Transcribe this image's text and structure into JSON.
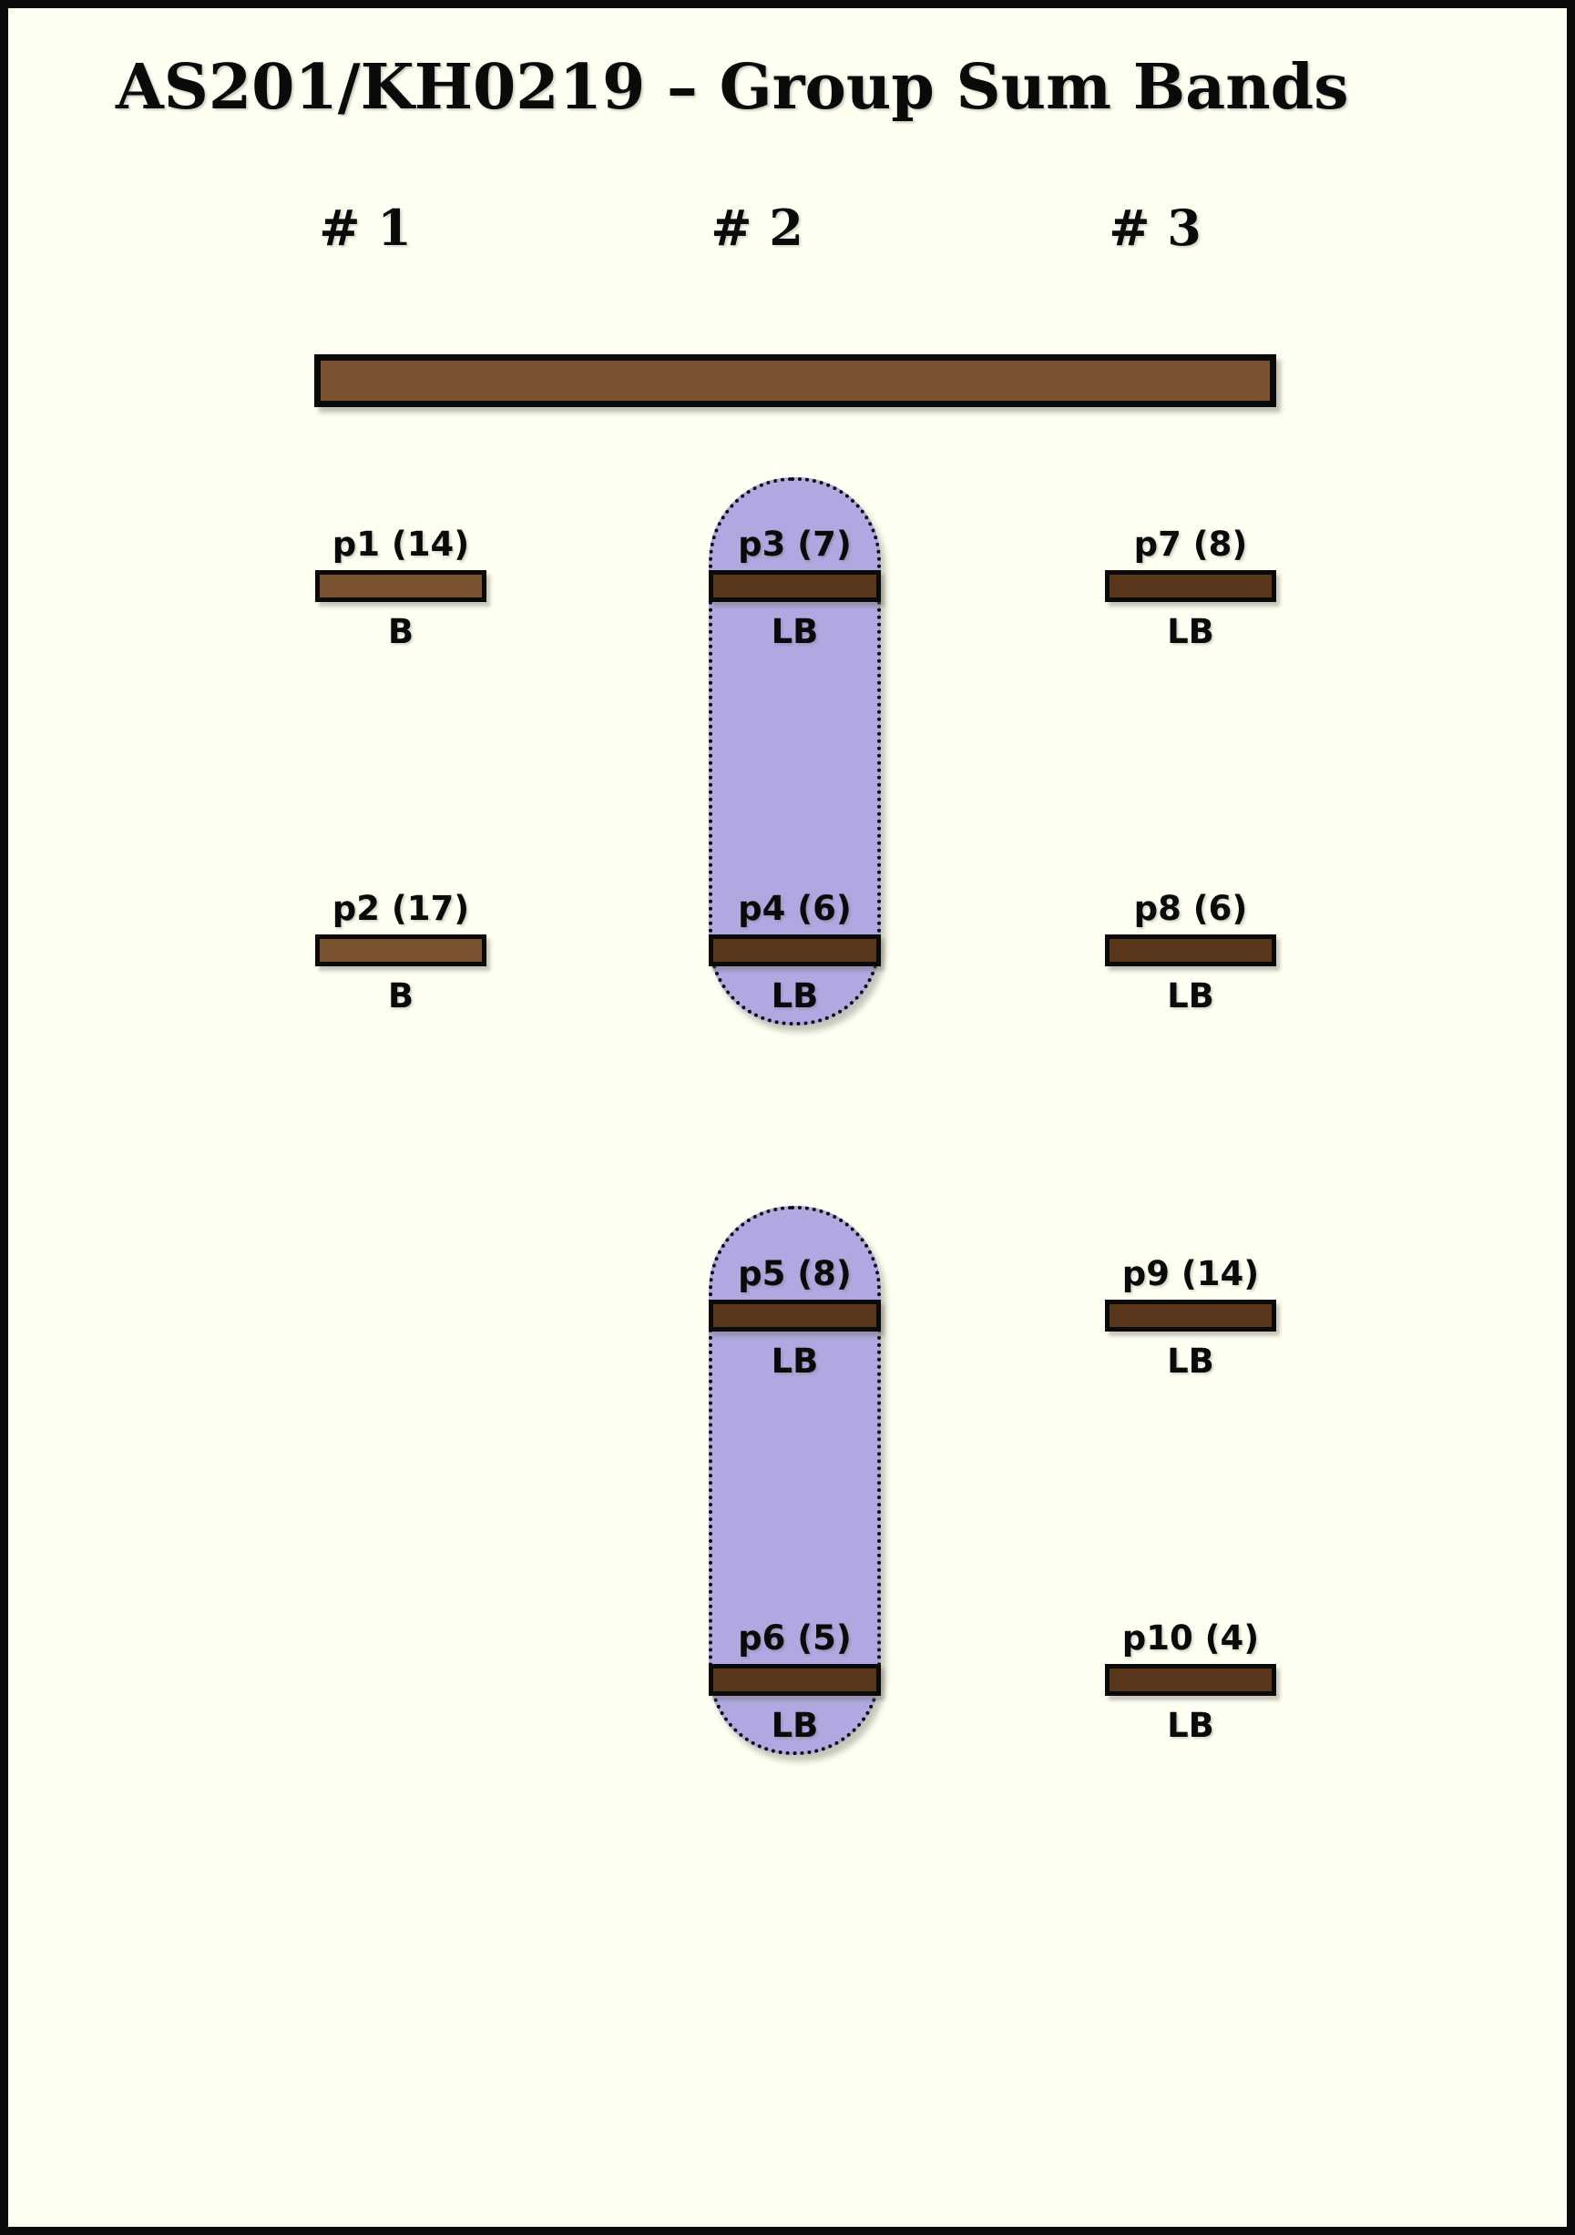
{
  "title": "AS201/KH0219 – Group Sum Bands",
  "columns": [
    {
      "label": "# 1"
    },
    {
      "label": "# 2"
    },
    {
      "label": "# 3"
    }
  ],
  "sum_bar": {
    "fill_color": "#7B5230",
    "spans_columns": "1-3"
  },
  "groups": [
    {
      "contains": [
        "p3",
        "p4"
      ],
      "fill_color": "#B0A8E1"
    },
    {
      "contains": [
        "p5",
        "p6"
      ],
      "fill_color": "#B0A8E1"
    }
  ],
  "bands": [
    {
      "id": "p1",
      "label": "p1 (14)",
      "value": 14,
      "type": "B",
      "column": 1,
      "shade": "medium"
    },
    {
      "id": "p2",
      "label": "p2 (17)",
      "value": 17,
      "type": "B",
      "column": 1,
      "shade": "medium"
    },
    {
      "id": "p3",
      "label": "p3 (7)",
      "value": 7,
      "type": "LB",
      "column": 2,
      "shade": "dark"
    },
    {
      "id": "p4",
      "label": "p4 (6)",
      "value": 6,
      "type": "LB",
      "column": 2,
      "shade": "dark"
    },
    {
      "id": "p5",
      "label": "p5 (8)",
      "value": 8,
      "type": "LB",
      "column": 2,
      "shade": "dark"
    },
    {
      "id": "p6",
      "label": "p6 (5)",
      "value": 5,
      "type": "LB",
      "column": 2,
      "shade": "dark"
    },
    {
      "id": "p7",
      "label": "p7 (8)",
      "value": 8,
      "type": "LB",
      "column": 3,
      "shade": "dark"
    },
    {
      "id": "p8",
      "label": "p8 (6)",
      "value": 6,
      "type": "LB",
      "column": 3,
      "shade": "dark"
    },
    {
      "id": "p9",
      "label": "p9 (14)",
      "value": 14,
      "type": "LB",
      "column": 3,
      "shade": "dark"
    },
    {
      "id": "p10",
      "label": "p10 (4)",
      "value": 4,
      "type": "LB",
      "column": 3,
      "shade": "dark"
    }
  ],
  "colors": {
    "bg": "#FFFFF2",
    "ink": "#0A0A0A",
    "brown": "#7B5230",
    "dark_brown": "#5A371B",
    "purple": "#B0A8E1"
  }
}
